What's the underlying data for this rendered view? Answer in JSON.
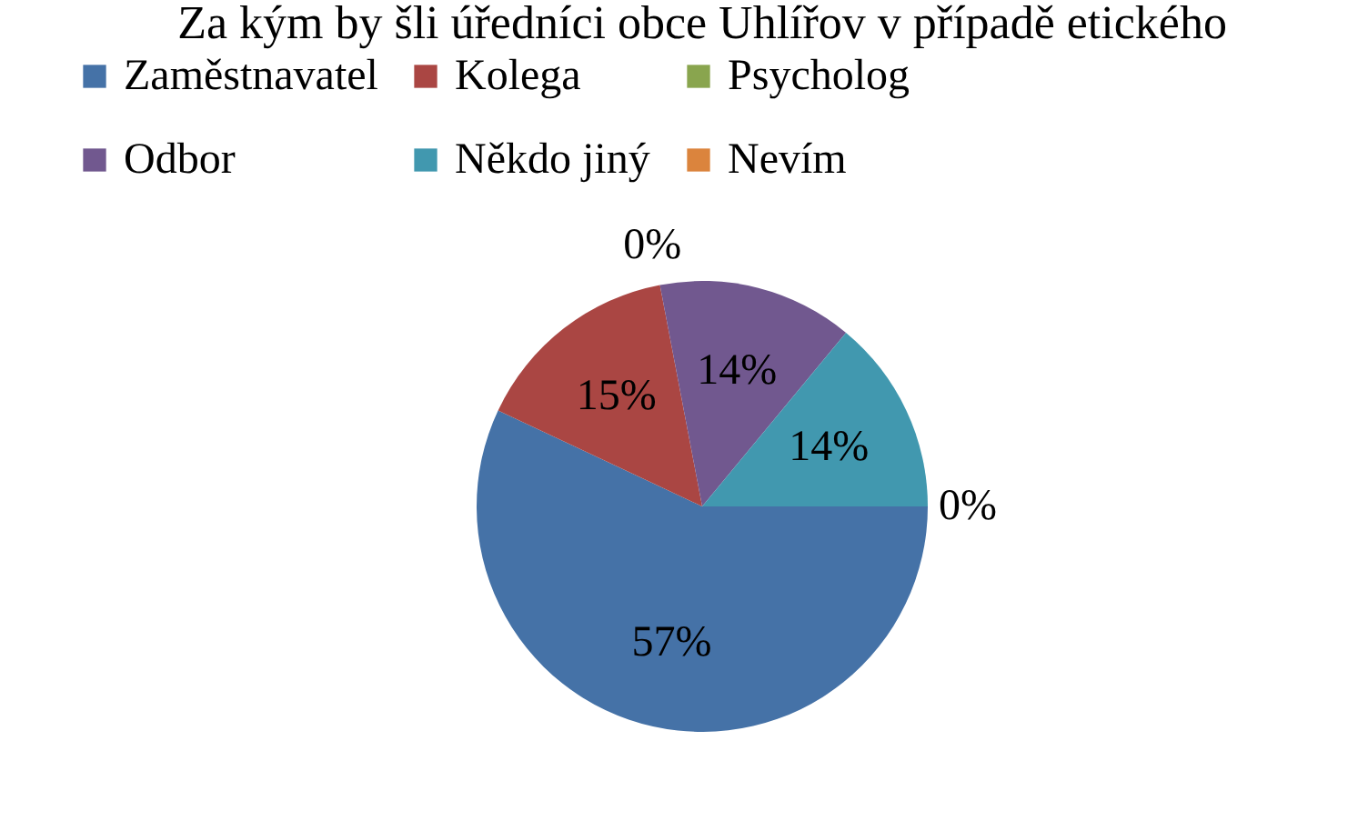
{
  "chart_data": {
    "type": "pie",
    "title": "Za kým by šli úředníci obce Uhlířov v případě etického",
    "categories": [
      "Zaměstnavatel",
      "Kolega",
      "Psycholog",
      "Odbor",
      "Někdo jiný",
      "Nevím"
    ],
    "values": [
      57,
      15,
      0,
      14,
      14,
      0
    ],
    "value_labels": [
      "57%",
      "15%",
      "0%",
      "14%",
      "14%",
      "0%"
    ],
    "colors": [
      "#4572a7",
      "#aa4643",
      "#89a54e",
      "#71588f",
      "#4198af",
      "#db843d"
    ],
    "legend": "top"
  }
}
